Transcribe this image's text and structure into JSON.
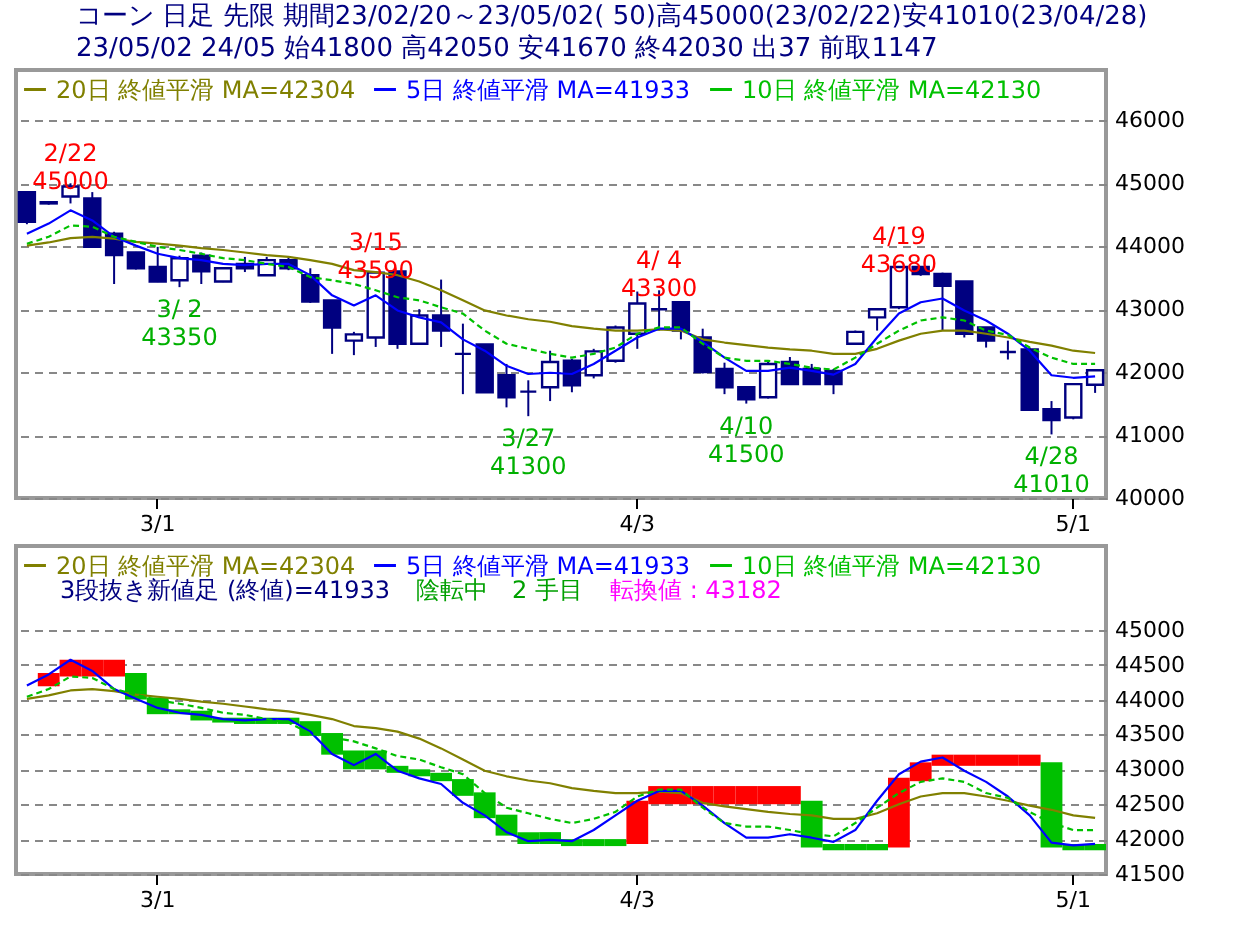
{
  "chart_data": [
    {
      "type": "candlestick",
      "title": "コーン 日足 先限 期間23/02/20～23/05/02( 50)高45000(23/02/22)安41010(23/04/28)",
      "subtitle": "23/05/02 24/05 始41800 高42050 安41670 終42030 出37 前取1147",
      "categories": [
        null,
        null,
        null,
        null,
        null,
        null,
        "3/1",
        null,
        null,
        null,
        null,
        null,
        null,
        null,
        null,
        null,
        null,
        null,
        null,
        null,
        null,
        null,
        null,
        null,
        null,
        null,
        null,
        null,
        "4/3",
        null,
        null,
        null,
        null,
        null,
        null,
        null,
        null,
        null,
        null,
        null,
        null,
        null,
        null,
        null,
        null,
        null,
        null,
        null,
        "5/1",
        null
      ],
      "ohlc": [
        [
          44860,
          44870,
          44350,
          44390
        ],
        [
          44700,
          44700,
          44660,
          44680
        ],
        [
          44790,
          45000,
          44680,
          44950
        ],
        [
          44760,
          44860,
          43990,
          43990
        ],
        [
          44200,
          44230,
          43400,
          43860
        ],
        [
          43900,
          43910,
          43630,
          43650
        ],
        [
          43670,
          43990,
          43430,
          43440
        ],
        [
          43460,
          43850,
          43350,
          43810
        ],
        [
          43850,
          43900,
          43400,
          43600
        ],
        [
          43440,
          43660,
          43430,
          43650
        ],
        [
          43720,
          43830,
          43590,
          43650
        ],
        [
          43540,
          43830,
          43530,
          43780
        ],
        [
          43780,
          43830,
          43620,
          43650
        ],
        [
          43540,
          43650,
          43100,
          43120
        ],
        [
          43140,
          43140,
          42290,
          42710
        ],
        [
          42500,
          42640,
          42270,
          42600
        ],
        [
          42550,
          43590,
          42400,
          43580
        ],
        [
          43600,
          43600,
          42370,
          42450
        ],
        [
          42450,
          43000,
          42440,
          42900
        ],
        [
          42900,
          43470,
          42400,
          42660
        ],
        [
          42290,
          42770,
          41650,
          42290
        ],
        [
          42440,
          42440,
          41680,
          41680
        ],
        [
          41950,
          42130,
          41440,
          41600
        ],
        [
          41690,
          41870,
          41300,
          41690
        ],
        [
          41760,
          42340,
          41540,
          42160
        ],
        [
          42180,
          42210,
          41680,
          41790
        ],
        [
          41950,
          42370,
          41900,
          42330
        ],
        [
          42180,
          42740,
          42150,
          42710
        ],
        [
          42610,
          43280,
          42370,
          43090
        ],
        [
          43000,
          43300,
          42660,
          43000
        ],
        [
          43110,
          43110,
          42520,
          42660
        ],
        [
          42550,
          42690,
          41980,
          42000
        ],
        [
          42050,
          42150,
          41650,
          41760
        ],
        [
          41760,
          41770,
          41500,
          41570
        ],
        [
          41600,
          42170,
          41580,
          42130
        ],
        [
          42160,
          42240,
          41800,
          41810
        ],
        [
          42050,
          42130,
          41800,
          41810
        ],
        [
          42020,
          42050,
          41650,
          41810
        ],
        [
          42450,
          42660,
          42440,
          42640
        ],
        [
          42870,
          43000,
          42660,
          43000
        ],
        [
          43030,
          43680,
          43000,
          43670
        ],
        [
          43670,
          43670,
          43530,
          43560
        ],
        [
          43560,
          43580,
          42660,
          43370
        ],
        [
          43440,
          43440,
          42550,
          42610
        ],
        [
          42710,
          42710,
          42390,
          42500
        ],
        [
          42320,
          42500,
          42200,
          42320
        ],
        [
          42360,
          42390,
          41400,
          41400
        ],
        [
          41410,
          41540,
          41010,
          41240
        ],
        [
          41280,
          41810,
          41250,
          41810
        ],
        [
          41800,
          42050,
          41670,
          42030
        ]
      ],
      "series": [
        {
          "name": "20日 終値平滑 MA=42304",
          "type": "line",
          "color": "#808000",
          "line_style": "solid",
          "values": [
            44010,
            44060,
            44130,
            44150,
            44120,
            44070,
            44040,
            44010,
            43970,
            43940,
            43900,
            43860,
            43830,
            43780,
            43720,
            43620,
            43590,
            43540,
            43440,
            43300,
            43140,
            42980,
            42900,
            42840,
            42800,
            42730,
            42690,
            42660,
            42660,
            42680,
            42660,
            42520,
            42470,
            42430,
            42390,
            42360,
            42340,
            42290,
            42290,
            42370,
            42500,
            42610,
            42660,
            42660,
            42610,
            42550,
            42480,
            42420,
            42340,
            42304
          ]
        },
        {
          "name": "5日 終値平滑 MA=41933",
          "type": "line",
          "color": "#0000ff",
          "line_style": "solid",
          "values": [
            44200,
            44360,
            44570,
            44410,
            44150,
            44010,
            43880,
            43810,
            43780,
            43720,
            43700,
            43720,
            43720,
            43540,
            43220,
            43060,
            43220,
            42980,
            42870,
            42790,
            42520,
            42340,
            42100,
            41970,
            41990,
            41970,
            42130,
            42340,
            42550,
            42690,
            42690,
            42480,
            42230,
            42020,
            42020,
            42070,
            42020,
            41960,
            42130,
            42550,
            42930,
            43110,
            43170,
            42980,
            42820,
            42610,
            42340,
            41950,
            41910,
            41933
          ]
        },
        {
          "name": "10日 終値平滑 MA=42130",
          "type": "line",
          "color": "#00c000",
          "line_style": "dashed",
          "values": [
            44040,
            44150,
            44330,
            44310,
            44150,
            44070,
            43990,
            43940,
            43880,
            43810,
            43780,
            43720,
            43670,
            43510,
            43460,
            43400,
            43300,
            43190,
            43140,
            43030,
            42930,
            42660,
            42450,
            42370,
            42290,
            42230,
            42290,
            42390,
            42610,
            42710,
            42710,
            42450,
            42230,
            42180,
            42180,
            42130,
            42070,
            42040,
            42230,
            42450,
            42660,
            42820,
            42870,
            42820,
            42660,
            42590,
            42390,
            42230,
            42130,
            42130
          ]
        }
      ],
      "annotations": [
        {
          "text": "2/22\n45000",
          "y": 45000
        },
        {
          "text": "3/ 2\n43350",
          "y": 43350
        },
        {
          "text": "3/15\n43590",
          "y": 43590
        },
        {
          "text": "3/27\n41300",
          "y": 41300
        },
        {
          "text": "4/ 4\n43300",
          "y": 43300
        },
        {
          "text": "4/10\n41500",
          "y": 41500
        },
        {
          "text": "4/19\n43680",
          "y": 43680
        },
        {
          "text": "4/28\n41010",
          "y": 41010
        }
      ],
      "ylim": [
        40000,
        46800
      ],
      "yticks": [
        40000,
        41000,
        42000,
        43000,
        44000,
        45000,
        46000
      ],
      "grid": "y",
      "legend": "top left"
    },
    {
      "type": "bar",
      "categories": [
        null,
        null,
        null,
        null,
        null,
        null,
        "3/1",
        null,
        null,
        null,
        null,
        null,
        null,
        null,
        null,
        null,
        null,
        null,
        null,
        null,
        null,
        null,
        null,
        null,
        null,
        null,
        null,
        null,
        "4/3",
        null,
        null,
        null,
        null,
        null,
        null,
        null,
        null,
        null,
        null,
        null,
        null,
        null,
        null,
        null,
        null,
        null,
        null,
        null,
        "5/1",
        null
      ],
      "series": [
        {
          "type": "bar",
          "base": [
            null,
            44190,
            44330,
            44330,
            44330,
            44000,
            43790,
            43790,
            43700,
            43670,
            43650,
            43650,
            43650,
            43480,
            43210,
            43000,
            43000,
            42950,
            42900,
            42830,
            42620,
            42300,
            42050,
            41930,
            41930,
            41900,
            41900,
            41900,
            41930,
            42500,
            42500,
            42500,
            42500,
            42500,
            42500,
            42500,
            41880,
            41840,
            41840,
            41840,
            41880,
            42830,
            43050,
            43050,
            43050,
            43050,
            43050,
            41880,
            41840,
            41840
          ],
          "values": [
            null,
            190,
            240,
            240,
            240,
            380,
            240,
            70,
            140,
            70,
            90,
            90,
            90,
            210,
            310,
            270,
            270,
            100,
            100,
            120,
            240,
            370,
            300,
            170,
            170,
            100,
            100,
            100,
            620,
            260,
            260,
            260,
            260,
            260,
            260,
            260,
            670,
            90,
            90,
            90,
            1000,
            270,
            160,
            160,
            160,
            160,
            160,
            1220,
            90,
            90
          ],
          "colors": [
            null,
            "#ff0000",
            "#ff0000",
            "#ff0000",
            "#ff0000",
            "#00c000",
            "#00c000",
            "#00c000",
            "#00c000",
            "#00c000",
            "#00c000",
            "#00c000",
            "#00c000",
            "#00c000",
            "#00c000",
            "#00c000",
            "#00c000",
            "#00c000",
            "#00c000",
            "#00c000",
            "#00c000",
            "#00c000",
            "#00c000",
            "#00c000",
            "#00c000",
            "#00c000",
            "#00c000",
            "#00c000",
            "#ff0000",
            "#ff0000",
            "#ff0000",
            "#ff0000",
            "#ff0000",
            "#ff0000",
            "#ff0000",
            "#ff0000",
            "#00c000",
            "#00c000",
            "#00c000",
            "#00c000",
            "#ff0000",
            "#ff0000",
            "#ff0000",
            "#ff0000",
            "#ff0000",
            "#ff0000",
            "#ff0000",
            "#00c000",
            "#00c000",
            "#00c000"
          ]
        },
        {
          "name": "20日 終値平滑 MA=42304",
          "type": "line",
          "color": "#808000",
          "line_style": "solid",
          "values": [
            44010,
            44060,
            44130,
            44150,
            44120,
            44070,
            44040,
            44010,
            43970,
            43940,
            43900,
            43860,
            43830,
            43780,
            43720,
            43620,
            43590,
            43540,
            43440,
            43300,
            43140,
            42980,
            42900,
            42840,
            42800,
            42730,
            42690,
            42660,
            42660,
            42680,
            42660,
            42520,
            42470,
            42430,
            42390,
            42360,
            42340,
            42290,
            42290,
            42370,
            42500,
            42610,
            42660,
            42660,
            42610,
            42550,
            42480,
            42420,
            42340,
            42304
          ]
        },
        {
          "name": "5日 終値平滑 MA=41933",
          "type": "line",
          "color": "#0000ff",
          "line_style": "solid",
          "values": [
            44200,
            44360,
            44570,
            44410,
            44150,
            44010,
            43880,
            43810,
            43780,
            43720,
            43700,
            43720,
            43720,
            43540,
            43220,
            43060,
            43220,
            42980,
            42870,
            42790,
            42520,
            42340,
            42100,
            41970,
            41990,
            41970,
            42130,
            42340,
            42550,
            42690,
            42690,
            42480,
            42230,
            42020,
            42020,
            42070,
            42020,
            41960,
            42130,
            42550,
            42930,
            43110,
            43170,
            42980,
            42820,
            42610,
            42340,
            41950,
            41910,
            41933
          ]
        },
        {
          "name": "10日 終値平滑 MA=42130",
          "type": "line",
          "color": "#00c000",
          "line_style": "dashed",
          "values": [
            44040,
            44150,
            44330,
            44310,
            44150,
            44070,
            43990,
            43940,
            43880,
            43810,
            43780,
            43720,
            43670,
            43510,
            43460,
            43400,
            43300,
            43190,
            43140,
            43030,
            42930,
            42660,
            42450,
            42370,
            42290,
            42230,
            42290,
            42390,
            42610,
            42710,
            42710,
            42450,
            42230,
            42180,
            42180,
            42130,
            42070,
            42040,
            42230,
            42450,
            42660,
            42820,
            42870,
            42820,
            42660,
            42590,
            42390,
            42230,
            42130,
            42130
          ]
        }
      ],
      "annotations": [
        "3段抜き新値足 (終値)=41933",
        "陰転中　2 手目",
        "転換値 : 43182"
      ],
      "ylim": [
        41500,
        46200
      ],
      "yticks": [
        41500,
        42000,
        42500,
        43000,
        43500,
        44000,
        44500,
        45000
      ],
      "grid": "y",
      "legend": "top left"
    }
  ]
}
